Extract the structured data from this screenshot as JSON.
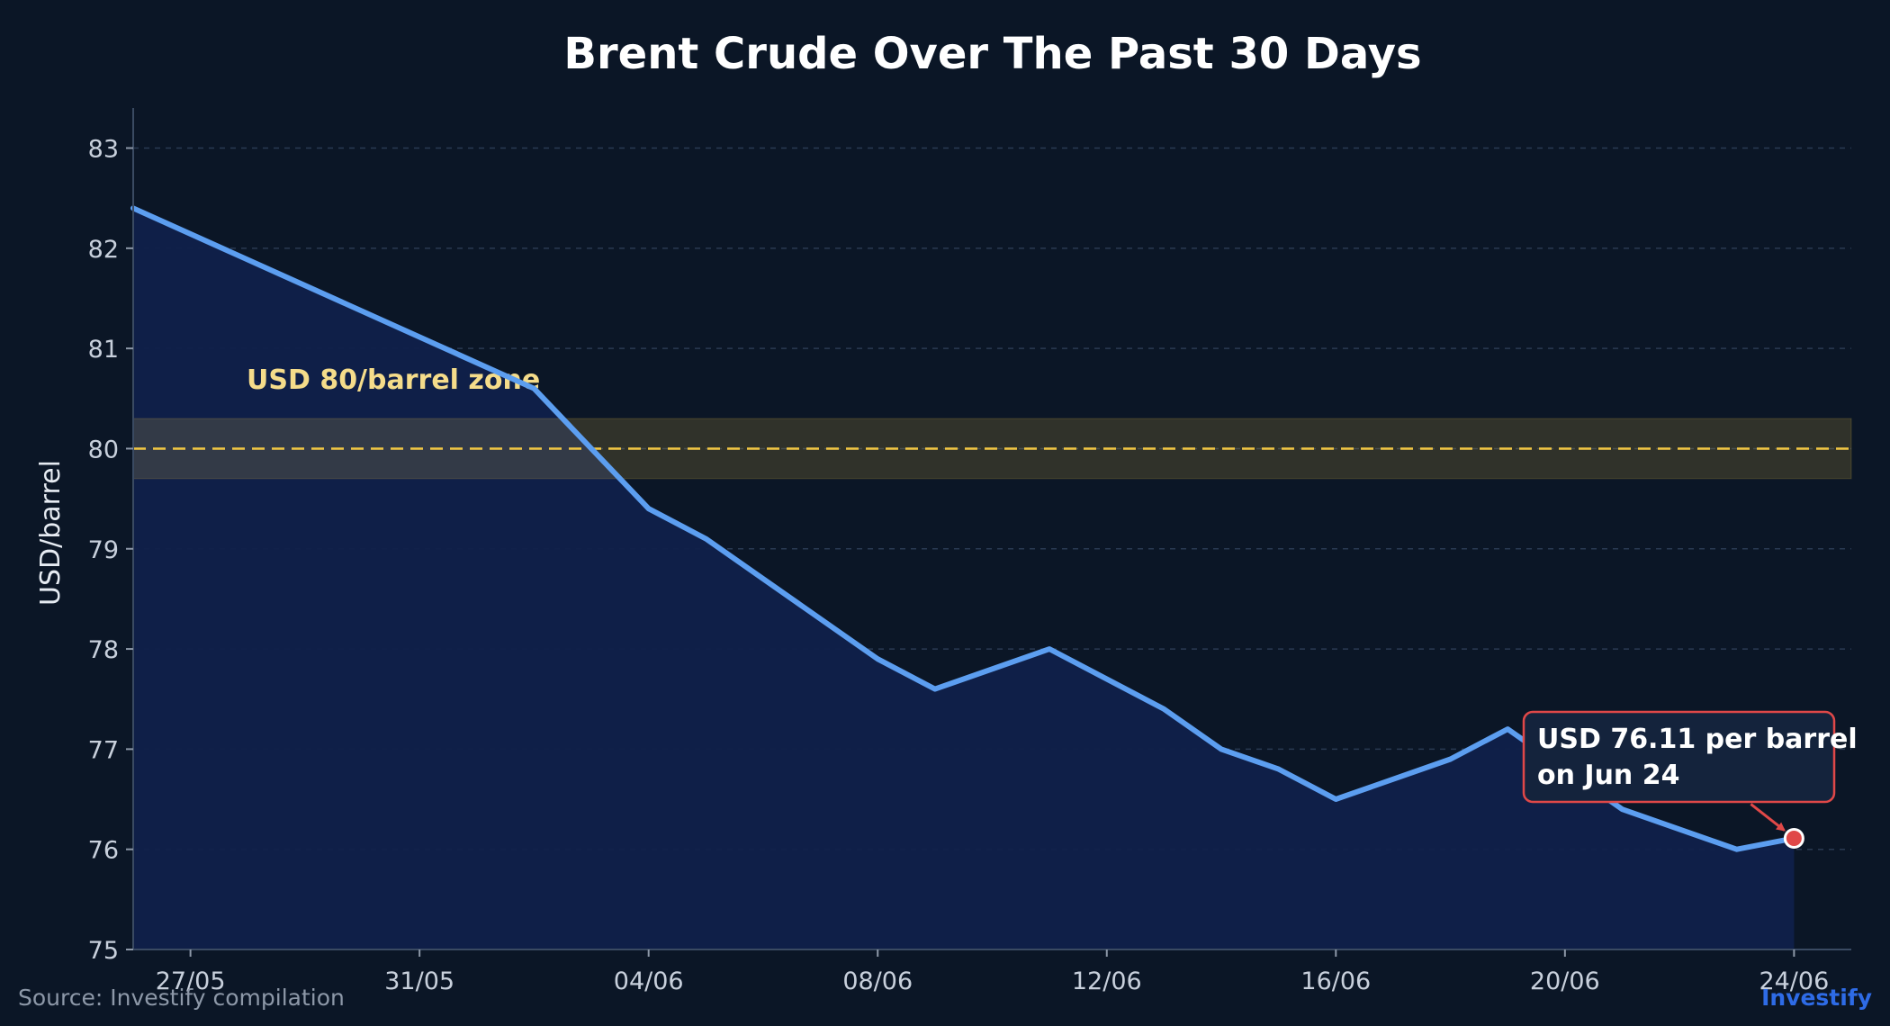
{
  "chart_data": {
    "type": "area",
    "title": "Brent Crude Over The Past 30 Days",
    "xlabel": "",
    "ylabel": "USD/barrel",
    "ylim": [
      75,
      83.4
    ],
    "xlim": [
      "2024-05-26",
      "2024-06-25"
    ],
    "yticks": [
      75,
      76,
      77,
      78,
      79,
      80,
      81,
      82,
      83
    ],
    "xticks": [
      "27/05",
      "31/05",
      "04/06",
      "08/06",
      "12/06",
      "16/06",
      "20/06",
      "24/06"
    ],
    "xtick_dates": [
      "2024-05-27",
      "2024-05-31",
      "2024-06-04",
      "2024-06-08",
      "2024-06-12",
      "2024-06-16",
      "2024-06-20",
      "2024-06-24"
    ],
    "grid": true,
    "series": [
      {
        "color": "#5c9ef0",
        "x": [
          "2024-05-26",
          "2024-06-02",
          "2024-06-04",
          "2024-06-05",
          "2024-06-08",
          "2024-06-09",
          "2024-06-11",
          "2024-06-13",
          "2024-06-14",
          "2024-06-15",
          "2024-06-16",
          "2024-06-18",
          "2024-06-19",
          "2024-06-20",
          "2024-06-21",
          "2024-06-23",
          "2024-06-24"
        ],
        "values": [
          82.4,
          80.6,
          79.4,
          79.1,
          77.9,
          77.6,
          78.0,
          77.4,
          77.0,
          76.8,
          76.5,
          76.9,
          77.2,
          76.8,
          76.4,
          76.0,
          76.11
        ]
      }
    ],
    "reference_band": {
      "value": 80,
      "range": [
        79.7,
        80.3
      ],
      "label": "USD 80/barrel zone",
      "color": "#f2c744"
    },
    "annotation": {
      "lines": [
        "USD 76.11 per barrel",
        "on Jun 24"
      ],
      "x": "2024-06-24",
      "y": 76.11,
      "color": "#e04848"
    }
  },
  "footer": {
    "source": "Source: Investify compilation",
    "brand": "Investify",
    "brand_color": "#2e6be6"
  },
  "colors": {
    "background": "#0b1626",
    "area_fill": "#10204a",
    "grid": "#2a3a52"
  }
}
